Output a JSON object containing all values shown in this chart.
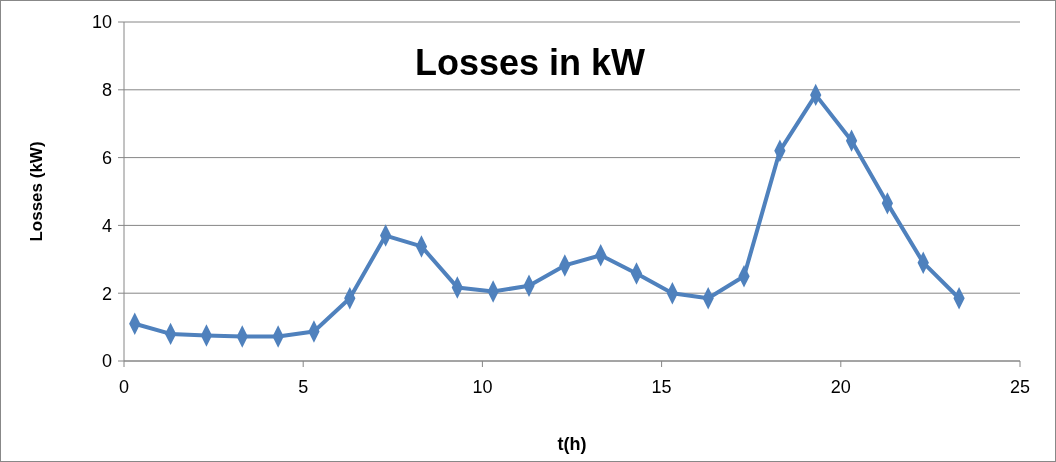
{
  "chart_data": {
    "type": "line",
    "title": "Losses in kW",
    "xlabel": "t(h)",
    "ylabel": "Losses (kW)",
    "x": [
      0.3,
      1.3,
      2.3,
      3.3,
      4.3,
      5.3,
      6.3,
      7.3,
      8.3,
      9.3,
      10.3,
      11.3,
      12.3,
      13.3,
      14.3,
      15.3,
      16.3,
      17.3,
      18.3,
      19.3,
      20.3,
      21.3,
      22.3,
      23.3
    ],
    "series": [
      {
        "color": "#4f81bd",
        "values": [
          1.1,
          0.8,
          0.75,
          0.72,
          0.72,
          0.87,
          1.85,
          3.7,
          3.38,
          2.17,
          2.05,
          2.22,
          2.82,
          3.12,
          2.58,
          2.0,
          1.85,
          2.5,
          6.2,
          7.85,
          6.5,
          4.65,
          2.9,
          1.85
        ]
      }
    ],
    "xlim": [
      0,
      25
    ],
    "xticks": [
      0,
      5,
      10,
      15,
      20,
      25
    ],
    "ylim": [
      0,
      10
    ],
    "yticks": [
      0,
      2,
      4,
      6,
      8,
      10
    ],
    "grid": "y",
    "marker": "diamond",
    "line_style": "solid"
  }
}
